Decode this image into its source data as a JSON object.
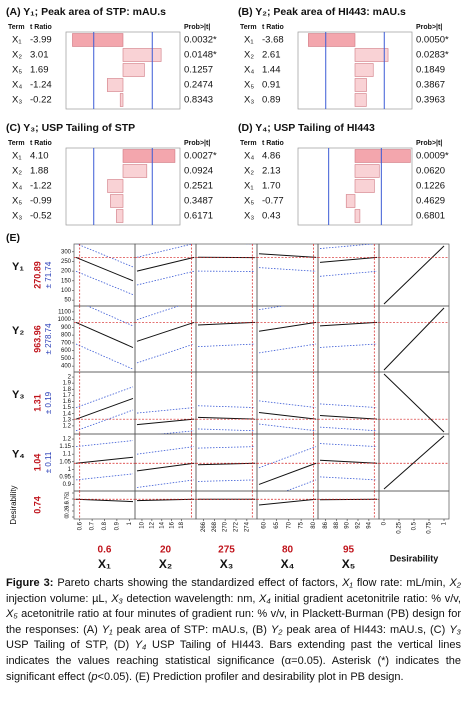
{
  "panels": [
    {
      "title": "(A) Y₁; Peak area of STP: mAU.s",
      "header": [
        "Term",
        "t Ratio",
        "Prob>|t|"
      ],
      "terms": [
        "X₁",
        "X₂",
        "X₅",
        "X₄",
        "X₃"
      ],
      "values": [
        -3.99,
        3.01,
        1.69,
        -1.24,
        -0.22
      ],
      "value_labels": [
        "-3.99",
        "3.01",
        "1.69",
        "-1.24",
        "-0.22"
      ],
      "p_values": [
        "0.0032*",
        "0.0148*",
        "0.1257",
        "0.2474",
        "0.8343"
      ],
      "xlim": [
        -4.5,
        4.5
      ],
      "threshold": 2.31
    },
    {
      "title": "(B) Y₂; Peak area of HI443: mAU.s",
      "header": [
        "Term",
        "t Ratio",
        "Prob>|t|"
      ],
      "terms": [
        "X₁",
        "X₂",
        "X₄",
        "X₅",
        "X₃"
      ],
      "values": [
        -3.68,
        2.61,
        1.44,
        0.91,
        0.89
      ],
      "value_labels": [
        "-3.68",
        "2.61",
        "1.44",
        "0.91",
        "0.89"
      ],
      "p_values": [
        "0.0050*",
        "0.0283*",
        "0.1849",
        "0.3867",
        "0.3963"
      ],
      "xlim": [
        -4.5,
        4.5
      ],
      "threshold": 2.31
    },
    {
      "title": "(C) Y₃; USP Tailing of STP",
      "header": [
        "Term",
        "t Ratio",
        "Prob>|t|"
      ],
      "terms": [
        "X₁",
        "X₂",
        "X₄",
        "X₅",
        "X₃"
      ],
      "values": [
        4.1,
        1.88,
        -1.22,
        -0.99,
        -0.52
      ],
      "value_labels": [
        "4.10",
        "1.88",
        "-1.22",
        "-0.99",
        "-0.52"
      ],
      "p_values": [
        "0.0027*",
        "0.0924",
        "0.2521",
        "0.3487",
        "0.6171"
      ],
      "xlim": [
        -4.5,
        4.5
      ],
      "threshold": 2.31
    },
    {
      "title": "(D) Y₄; USP Tailing of HI443",
      "header": [
        "Term",
        "t Ratio",
        "Prob>|t|"
      ],
      "terms": [
        "X₄",
        "X₂",
        "X₁",
        "X₅",
        "X₃"
      ],
      "values": [
        4.86,
        2.13,
        1.7,
        -0.77,
        0.43
      ],
      "value_labels": [
        "4.86",
        "2.13",
        "1.70",
        "-0.77",
        "0.43"
      ],
      "p_values": [
        "0.0009*",
        "0.0620",
        "0.1226",
        "0.4629",
        "0.6801"
      ],
      "xlim": [
        -5,
        5
      ],
      "threshold": 2.31
    }
  ],
  "profiler": {
    "label": "(E)",
    "rows": [
      {
        "name": "Y₁",
        "value": 270.89,
        "half_width": {
          "value": 71.74,
          "label": "± 71.74"
        },
        "ylim": [
          30,
          330
        ],
        "yticks": [
          50,
          100,
          150,
          200,
          250,
          300
        ],
        "traces": [
          [
            271,
            150
          ],
          [
            200,
            271
          ],
          [
            272,
            270
          ],
          [
            290,
            271
          ],
          [
            245,
            271
          ]
        ],
        "desirability_ends": [
          0,
          1
        ]
      },
      {
        "name": "Y₂",
        "value": 963.96,
        "half_width": {
          "value": 278.74,
          "label": "± 278.74"
        },
        "ylim": [
          350,
          1150
        ],
        "yticks": [
          400,
          500,
          600,
          700,
          800,
          900,
          1000,
          1100
        ],
        "traces": [
          [
            964,
            640
          ],
          [
            720,
            964
          ],
          [
            930,
            964
          ],
          [
            850,
            964
          ],
          [
            920,
            964
          ]
        ],
        "desirability_ends": [
          0,
          1
        ]
      },
      {
        "name": "Y₃",
        "value": 1.31,
        "half_width": {
          "value": 0.19,
          "label": "± 0.19"
        },
        "ylim": [
          1.1,
          2.05
        ],
        "yticks": [
          1.2,
          1.3,
          1.4,
          1.5,
          1.6,
          1.7,
          1.8,
          1.9,
          2
        ],
        "traces": [
          [
            1.31,
            1.65
          ],
          [
            1.22,
            1.31
          ],
          [
            1.34,
            1.31
          ],
          [
            1.42,
            1.31
          ],
          [
            1.37,
            1.31
          ]
        ],
        "desirability_ends": [
          1,
          0
        ]
      },
      {
        "name": "Y₄",
        "value": 1.04,
        "half_width": {
          "value": 0.11,
          "label": "± 0.11"
        },
        "ylim": [
          0.87,
          1.22
        ],
        "yticks": [
          0.9,
          0.95,
          1,
          1.05,
          1.1,
          1.15,
          1.2
        ],
        "traces": [
          [
            1.04,
            1.08
          ],
          [
            0.99,
            1.04
          ],
          [
            1.03,
            1.04
          ],
          [
            0.9,
            1.04
          ],
          [
            1.06,
            1.04
          ]
        ],
        "desirability_ends": [
          0,
          1
        ]
      },
      {
        "name": "Desirability",
        "value": 0.74,
        "ylim": [
          0,
          1
        ],
        "yticks": [
          0,
          0.25,
          0.5,
          0.75,
          1
        ],
        "traces": [
          [
            0.74,
            0.64
          ],
          [
            0.68,
            0.74
          ],
          [
            0.74,
            0.74
          ],
          [
            0.5,
            0.74
          ],
          [
            0.72,
            0.74
          ]
        ]
      }
    ],
    "factors": [
      {
        "name": "X₁",
        "current": 0.6,
        "xlim": [
          0.57,
          1.03
        ],
        "xticks": [
          0.6,
          0.7,
          0.8,
          0.9,
          1
        ]
      },
      {
        "name": "X₂",
        "current": 20,
        "xlim": [
          9,
          20.5
        ],
        "xticks": [
          10,
          12,
          14,
          16,
          18
        ]
      },
      {
        "name": "X₃",
        "current": 275,
        "xlim": [
          265,
          275.5
        ],
        "xticks": [
          266,
          268,
          270,
          272,
          274
        ]
      },
      {
        "name": "X₄",
        "current": 80,
        "xlim": [
          58,
          81
        ],
        "xticks": [
          60,
          65,
          70,
          75,
          80
        ]
      },
      {
        "name": "X₅",
        "current": 95,
        "xlim": [
          85,
          95.5
        ],
        "xticks": [
          86,
          88,
          90,
          92,
          94
        ]
      }
    ],
    "desirability_column": {
      "label": "Desirability",
      "xlim": [
        -0.05,
        1.05
      ],
      "xticks": [
        0,
        0.25,
        0.5,
        0.75,
        1
      ]
    }
  },
  "caption": [
    "Figure 3:",
    " Pareto charts showing the standardized effect of factors, ",
    "X₁",
    " flow rate: mL/min, ",
    "X₂",
    " injection volume: µL, ",
    "X₃",
    " detection wavelength: nm, ",
    "X₄",
    " initial gradient acetonitrile ratio: % v/v, ",
    "X₅",
    " acetonitrile ratio at four minutes of gradient run: % v/v, in Plackett-Burman (PB) design for the responses: (A) ",
    "Y₁",
    " peak area of STP: mAU.s, (B) ",
    "Y₂",
    " peak area of HI443: mAU.s, (C) ",
    "Y₃",
    " USP Tailing of STP, (D) ",
    "Y₄",
    " USP Tailing of HI443. Bars extending past the vertical lines indicates the values reaching statistical significance (α=0.05). Asterisk (*) indicates the significant effect (",
    "p",
    "<0.05). (E) Prediction profiler and desirability plot in PB design."
  ]
}
